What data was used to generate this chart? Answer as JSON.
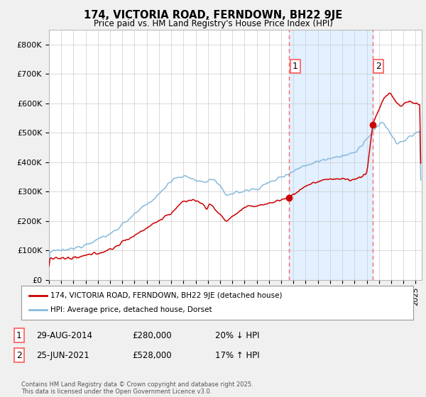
{
  "title_line1": "174, VICTORIA ROAD, FERNDOWN, BH22 9JE",
  "title_line2": "Price paid vs. HM Land Registry's House Price Index (HPI)",
  "legend_label_red": "174, VICTORIA ROAD, FERNDOWN, BH22 9JE (detached house)",
  "legend_label_blue": "HPI: Average price, detached house, Dorset",
  "annotation1_label": "1",
  "annotation1_date": "29-AUG-2014",
  "annotation1_price": "£280,000",
  "annotation1_hpi": "20% ↓ HPI",
  "annotation1_year": 2014.66,
  "annotation1_value": 280000,
  "annotation2_label": "2",
  "annotation2_date": "25-JUN-2021",
  "annotation2_price": "£528,000",
  "annotation2_hpi": "17% ↑ HPI",
  "annotation2_year": 2021.48,
  "annotation2_value": 528000,
  "ylim": [
    0,
    850000
  ],
  "yticks": [
    0,
    100000,
    200000,
    300000,
    400000,
    500000,
    600000,
    700000,
    800000
  ],
  "ytick_labels": [
    "£0",
    "£100K",
    "£200K",
    "£300K",
    "£400K",
    "£500K",
    "£600K",
    "£700K",
    "£800K"
  ],
  "xlim_start": 1995.0,
  "xlim_end": 2025.5,
  "fig_bg_color": "#f0f0f0",
  "plot_bg_color": "#ffffff",
  "grid_color": "#cccccc",
  "red_line_color": "#cc0000",
  "blue_line_color": "#88bbdd",
  "shade_color": "#ddeeff",
  "dashed_line_color": "#ff6666",
  "footer_text": "Contains HM Land Registry data © Crown copyright and database right 2025.\nThis data is licensed under the Open Government Licence v3.0."
}
